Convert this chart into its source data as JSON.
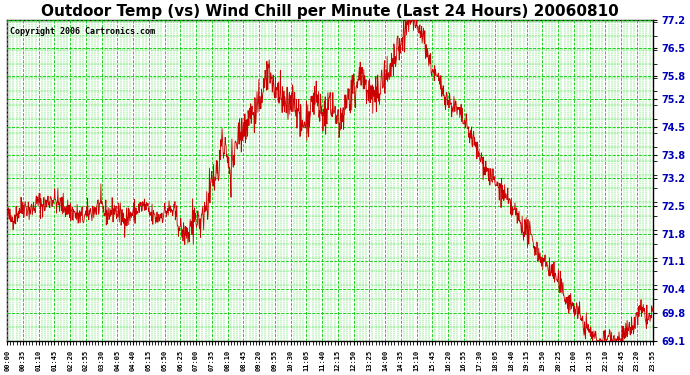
{
  "title": "Outdoor Temp (vs) Wind Chill per Minute (Last 24 Hours) 20060810",
  "copyright": "Copyright 2006 Cartronics.com",
  "yticks": [
    69.1,
    69.8,
    70.4,
    71.1,
    71.8,
    72.5,
    73.2,
    73.8,
    74.5,
    75.2,
    75.8,
    76.5,
    77.2
  ],
  "ymin": 69.1,
  "ymax": 77.2,
  "line_color": "#cc0000",
  "grid_color": "#00cc00",
  "background_color": "#ffffff",
  "title_fontsize": 11,
  "copyright_fontsize": 6,
  "ytick_fontsize": 7,
  "xtick_fontsize": 5,
  "tick_label_color": "#0000bb",
  "xtick_labels": [
    "00:00",
    "00:35",
    "01:10",
    "01:45",
    "02:20",
    "02:55",
    "03:30",
    "04:05",
    "04:40",
    "05:15",
    "05:50",
    "06:25",
    "07:00",
    "07:35",
    "08:10",
    "08:45",
    "09:20",
    "09:55",
    "10:30",
    "11:05",
    "11:40",
    "12:15",
    "12:50",
    "13:25",
    "14:00",
    "14:35",
    "15:10",
    "15:45",
    "16:20",
    "16:55",
    "17:30",
    "18:05",
    "18:40",
    "19:15",
    "19:50",
    "20:25",
    "21:00",
    "21:35",
    "22:10",
    "22:45",
    "23:20",
    "23:55"
  ],
  "temp_base": [
    72.3,
    72.2,
    72.4,
    72.5,
    72.4,
    72.6,
    72.5,
    72.7,
    72.6,
    72.5,
    72.4,
    72.3,
    72.2,
    72.3,
    72.4,
    72.5,
    72.3,
    72.4,
    72.3,
    72.2,
    72.3,
    72.4,
    72.5,
    72.3,
    72.2,
    72.3,
    72.4,
    72.3,
    71.9,
    71.8,
    72.0,
    72.1,
    72.5,
    73.0,
    73.5,
    74.0,
    73.5,
    74.2,
    74.5,
    74.8,
    75.0,
    75.3,
    75.8,
    75.5,
    75.2,
    75.0,
    75.2,
    74.8,
    74.5,
    75.0,
    75.2,
    74.8,
    75.0,
    74.8,
    74.9,
    75.2,
    75.5,
    75.8,
    75.5,
    75.2,
    75.5,
    75.8,
    76.0,
    76.5,
    76.8,
    77.2,
    77.0,
    76.8,
    76.2,
    75.8,
    75.5,
    75.2,
    75.0,
    74.8,
    74.5,
    74.2,
    73.8,
    73.5,
    73.2,
    73.0,
    72.8,
    72.5,
    72.3,
    72.0,
    71.8,
    71.5,
    71.2,
    71.0,
    70.8,
    70.5,
    70.2,
    70.0,
    69.8,
    69.5,
    69.3,
    69.1,
    69.1,
    69.2,
    69.1,
    69.2,
    69.3,
    69.5,
    69.8,
    69.7,
    69.8
  ]
}
